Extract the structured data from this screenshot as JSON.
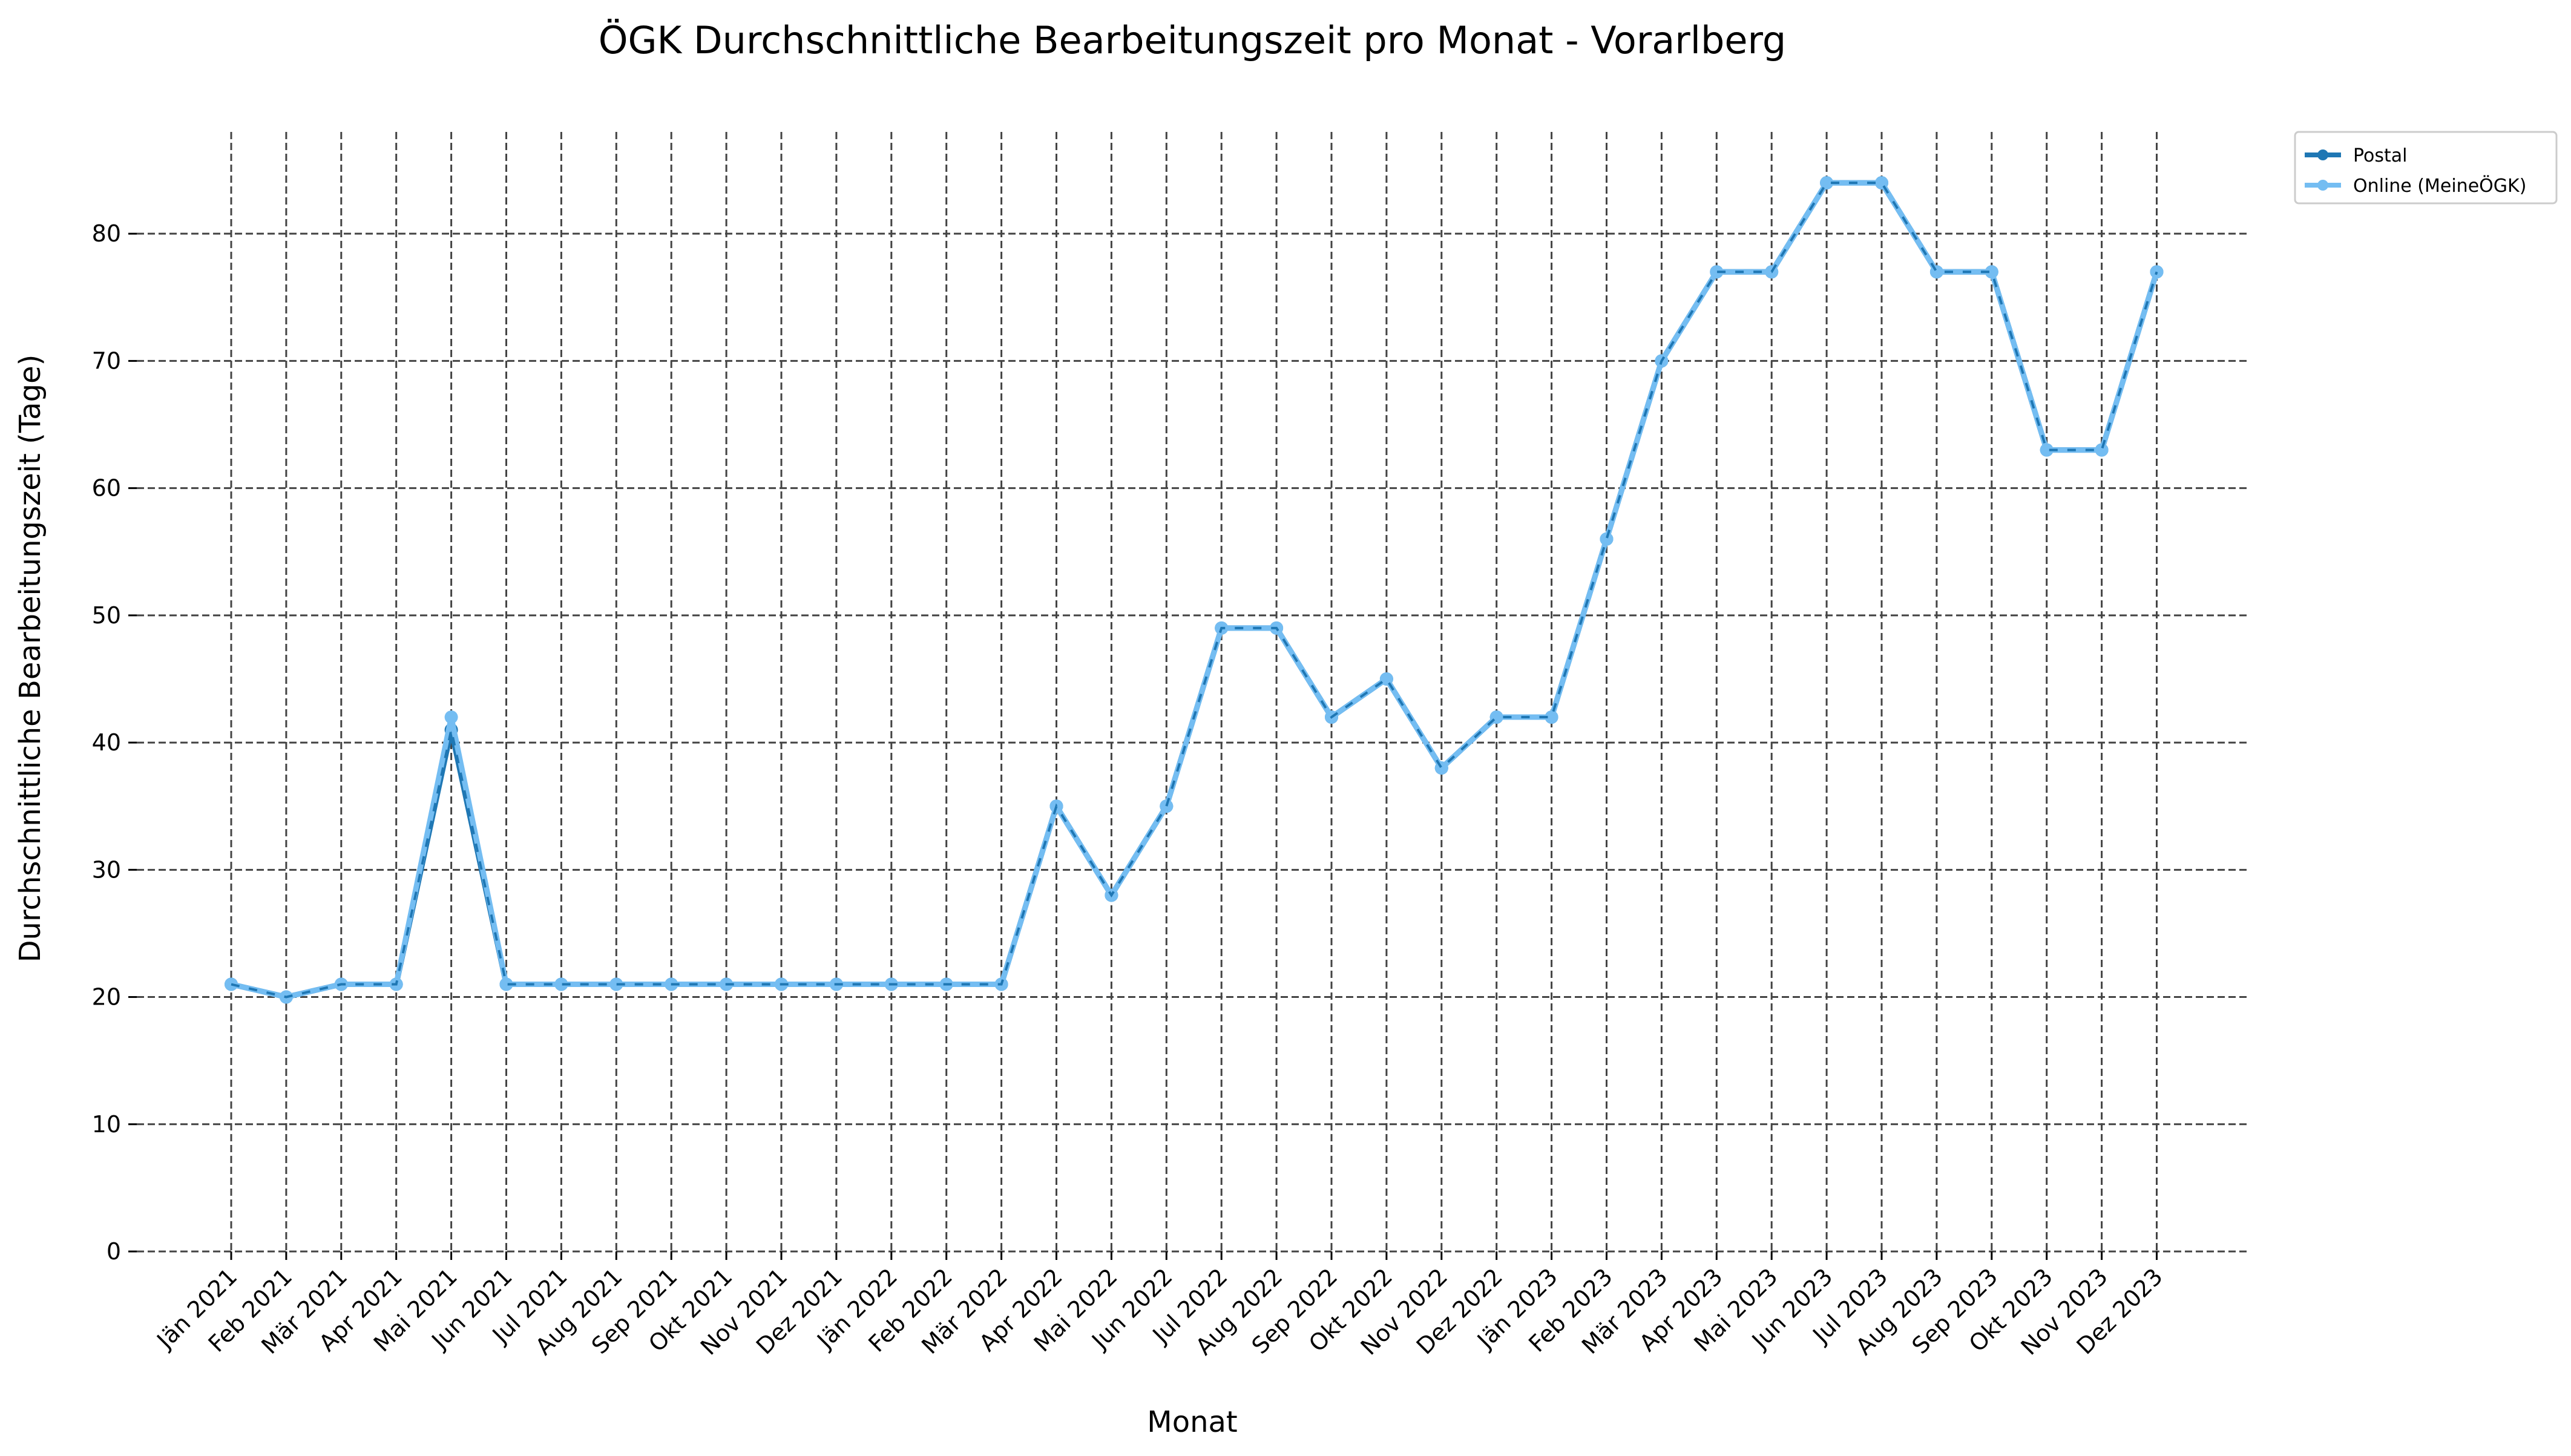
{
  "chart_data": {
    "type": "line",
    "title": "ÖGK Durchschnittliche Bearbeitungszeit pro Monat - Vorarlberg",
    "xlabel": "Monat",
    "ylabel": "Durchschnittliche Bearbeitungszeit (Tage)",
    "ylim": [
      0,
      88
    ],
    "yticks": [
      0,
      10,
      20,
      30,
      40,
      50,
      60,
      70,
      80
    ],
    "grid": true,
    "legend_position": "outside-top-right",
    "categories": [
      "Jän 2021",
      "Feb 2021",
      "Mär 2021",
      "Apr 2021",
      "Mai 2021",
      "Jun 2021",
      "Jul 2021",
      "Aug 2021",
      "Sep 2021",
      "Okt 2021",
      "Nov 2021",
      "Dez 2021",
      "Jän 2022",
      "Feb 2022",
      "Mär 2022",
      "Apr 2022",
      "Mai 2022",
      "Jun 2022",
      "Jul 2022",
      "Aug 2022",
      "Sep 2022",
      "Okt 2022",
      "Nov 2022",
      "Dez 2022",
      "Jän 2023",
      "Feb 2023",
      "Mär 2023",
      "Apr 2023",
      "Mai 2023",
      "Jun 2023",
      "Jul 2023",
      "Aug 2023",
      "Sep 2023",
      "Okt 2023",
      "Nov 2023",
      "Dez 2023"
    ],
    "series": [
      {
        "name": "Postal",
        "color": "#1f77b4",
        "dashed": true,
        "values": [
          21,
          20,
          21,
          21,
          41,
          21,
          21,
          21,
          21,
          21,
          21,
          21,
          21,
          21,
          21,
          35,
          28,
          35,
          49,
          49,
          42,
          45,
          38,
          42,
          42,
          56,
          70,
          77,
          77,
          84,
          84,
          77,
          77,
          63,
          63,
          77
        ]
      },
      {
        "name": "Online (MeineÖGK)",
        "color": "#74bdf2",
        "dashed": false,
        "values": [
          21,
          20,
          21,
          21,
          42,
          21,
          21,
          21,
          21,
          21,
          21,
          21,
          21,
          21,
          21,
          35,
          28,
          35,
          49,
          49,
          42,
          45,
          38,
          42,
          42,
          56,
          70,
          77,
          77,
          84,
          84,
          77,
          77,
          63,
          63,
          77
        ]
      }
    ]
  }
}
